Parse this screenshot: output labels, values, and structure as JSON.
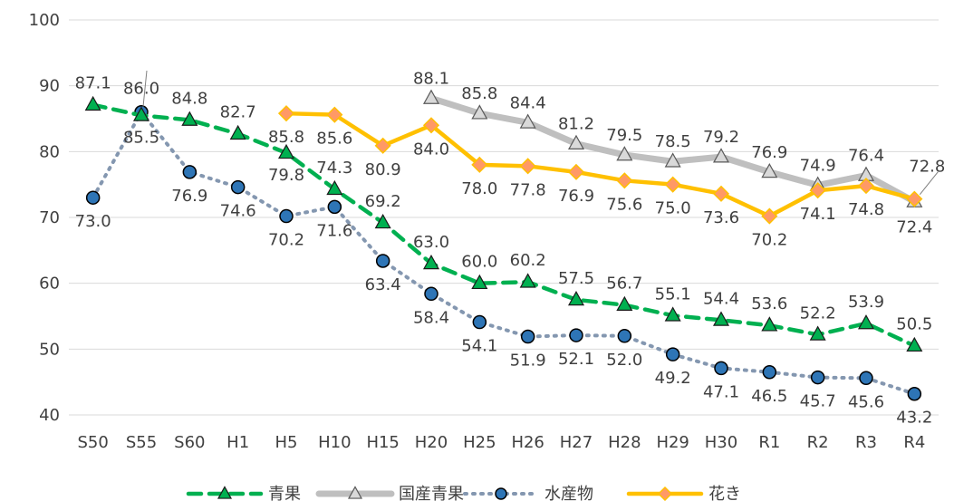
{
  "chart_data": {
    "type": "line",
    "categories": [
      "S50",
      "S55",
      "S60",
      "H1",
      "H5",
      "H10",
      "H15",
      "H20",
      "H25",
      "H26",
      "H27",
      "H28",
      "H29",
      "H30",
      "R1",
      "R2",
      "R3",
      "R4"
    ],
    "ylim": [
      40,
      100
    ],
    "y_ticks": [
      40,
      50,
      60,
      70,
      80,
      90,
      100
    ],
    "grid": true,
    "legend_position": "bottom",
    "series": [
      {
        "name": "青果",
        "color": "#00B050",
        "marker": "triangle",
        "line_style": "dashed",
        "values": [
          87.1,
          85.5,
          84.8,
          82.7,
          79.8,
          74.3,
          69.2,
          63.0,
          60.0,
          60.2,
          57.5,
          56.7,
          55.1,
          54.4,
          53.6,
          52.2,
          53.9,
          50.5
        ]
      },
      {
        "name": "国産青果",
        "color": "#BFBFBF",
        "marker": "triangle",
        "line_style": "solid",
        "values": [
          null,
          null,
          null,
          null,
          null,
          null,
          null,
          88.1,
          85.8,
          84.4,
          81.2,
          79.5,
          78.5,
          79.2,
          76.9,
          74.9,
          76.4,
          72.4
        ]
      },
      {
        "name": "水産物",
        "color": "#8497B0",
        "marker": "circle",
        "line_style": "dotted",
        "values": [
          73.0,
          86.0,
          76.9,
          74.6,
          70.2,
          71.6,
          63.4,
          58.4,
          54.1,
          51.9,
          52.1,
          52.0,
          49.2,
          47.1,
          46.5,
          45.7,
          45.6,
          43.2
        ]
      },
      {
        "name": "花き",
        "color": "#FFC000",
        "marker": "diamond",
        "line_style": "solid",
        "values": [
          null,
          null,
          null,
          null,
          85.8,
          85.6,
          80.9,
          84.0,
          78.0,
          77.8,
          76.9,
          75.6,
          75.0,
          73.6,
          70.2,
          74.1,
          74.8,
          72.8
        ]
      }
    ]
  }
}
